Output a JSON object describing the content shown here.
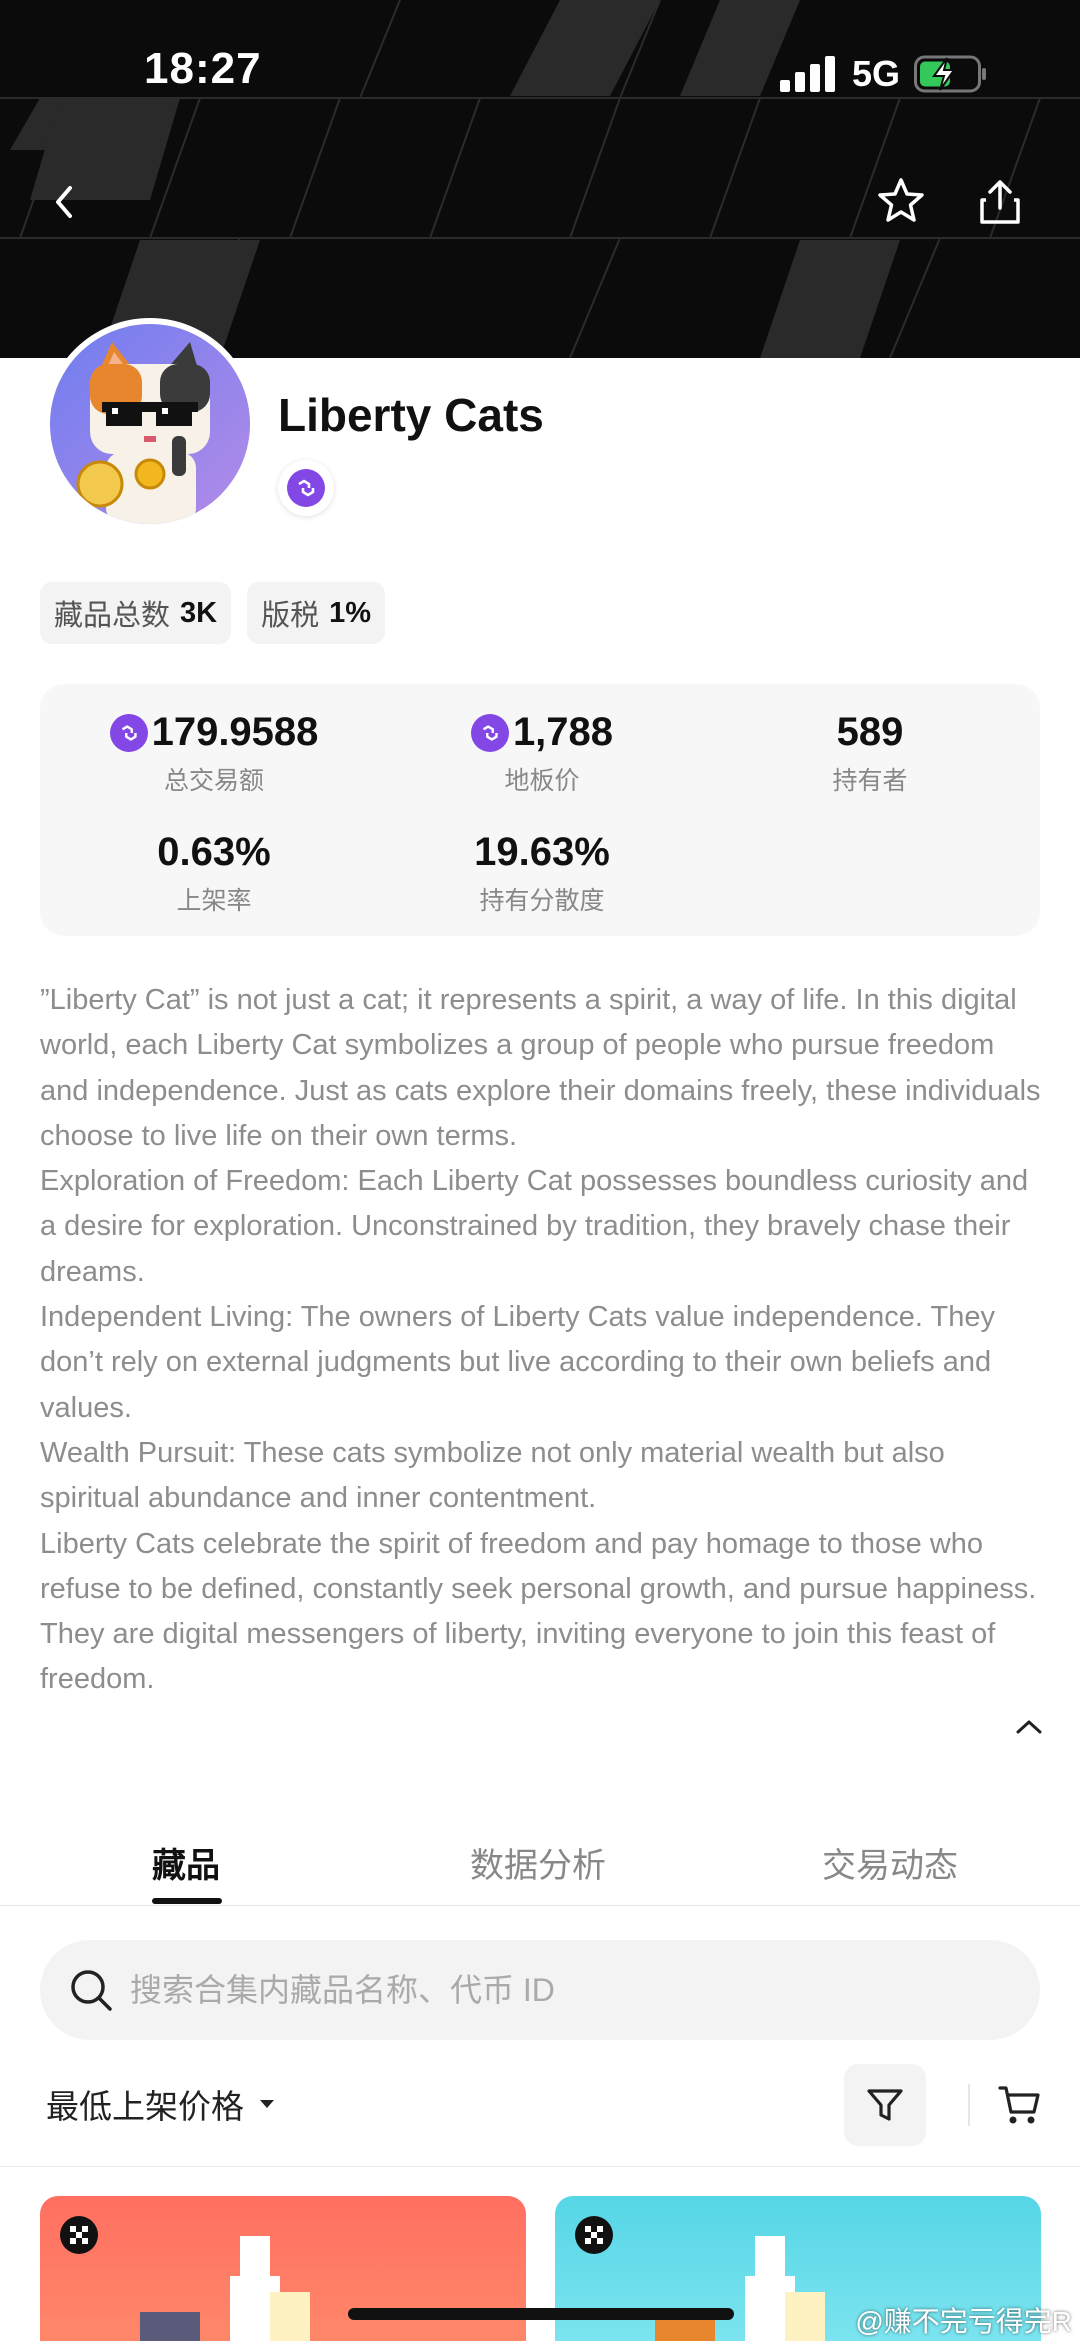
{
  "status_bar": {
    "time": "18:27",
    "network": "5G"
  },
  "collection": {
    "title": "Liberty Cats",
    "chain_icon": "polygon-chain-icon",
    "tags": [
      {
        "label": "藏品总数",
        "value": "3K"
      },
      {
        "label": "版税",
        "value": "1%"
      }
    ]
  },
  "stats": {
    "volume": {
      "value": "179.9588",
      "label": "总交易额"
    },
    "floor": {
      "value": "1,788",
      "label": "地板价"
    },
    "holders": {
      "value": "589",
      "label": "持有者"
    },
    "listed_rate": {
      "value": "0.63%",
      "label": "上架率"
    },
    "holder_dispersion": {
      "value": "19.63%",
      "label": "持有分散度"
    }
  },
  "description": [
    "”Liberty Cat” is not just a cat; it represents a spirit, a way of life. In this digital world, each Liberty Cat symbolizes a group of people who pursue freedom and independence. Just as cats explore their domains freely, these individuals choose to live life on their own terms.",
    "Exploration of Freedom: Each Liberty Cat possesses boundless curiosity and a desire for exploration. Unconstrained by tradition, they bravely chase their dreams.",
    "Independent Living: The owners of Liberty Cats value independence. They don’t rely on external judgments but live according to their own beliefs and values.",
    "Wealth Pursuit: These cats symbolize not only material wealth but also spiritual abundance and inner contentment.",
    "Liberty Cats celebrate the spirit of freedom and pay homage to those who refuse to be defined, constantly seek personal growth, and pursue happiness. They are digital messengers of liberty, inviting everyone to join this feast of freedom."
  ],
  "tabs": [
    {
      "label": "藏品",
      "active": true
    },
    {
      "label": "数据分析",
      "active": false
    },
    {
      "label": "交易动态",
      "active": false
    }
  ],
  "search": {
    "placeholder": "搜索合集内藏品名称、代币 ID",
    "value": ""
  },
  "sort": {
    "selected": "最低上架价格"
  },
  "watermark": "@赚不完亏得完R"
}
